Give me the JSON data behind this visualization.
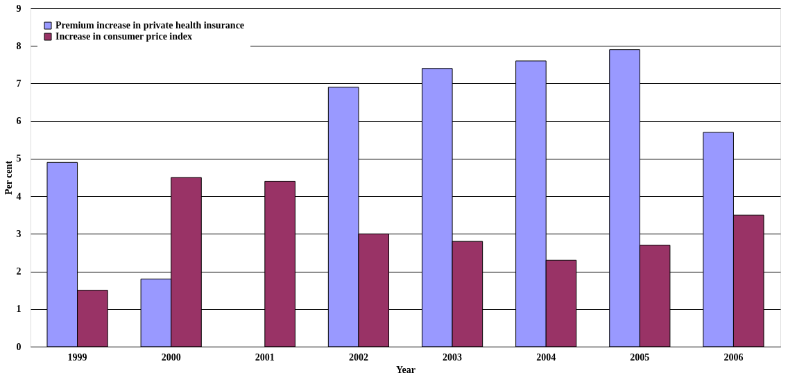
{
  "chart_data": {
    "type": "bar",
    "xlabel": "Year",
    "ylabel": "Per cent",
    "categories": [
      "1999",
      "2000",
      "2001",
      "2002",
      "2003",
      "2004",
      "2005",
      "2006"
    ],
    "series": [
      {
        "name": "Premium increase in private health insurance",
        "color": "#9999ff",
        "values": [
          4.9,
          1.8,
          null,
          6.9,
          7.4,
          7.6,
          7.9,
          5.7
        ]
      },
      {
        "name": "Increase in consumer price index",
        "color": "#993366",
        "values": [
          1.5,
          4.5,
          4.4,
          3.0,
          2.8,
          2.3,
          2.7,
          3.5
        ]
      }
    ],
    "ylim": [
      0,
      9
    ],
    "yticks": [
      0,
      1,
      2,
      3,
      4,
      5,
      6,
      7,
      8,
      9
    ],
    "grid": "y",
    "legend": "top left"
  }
}
